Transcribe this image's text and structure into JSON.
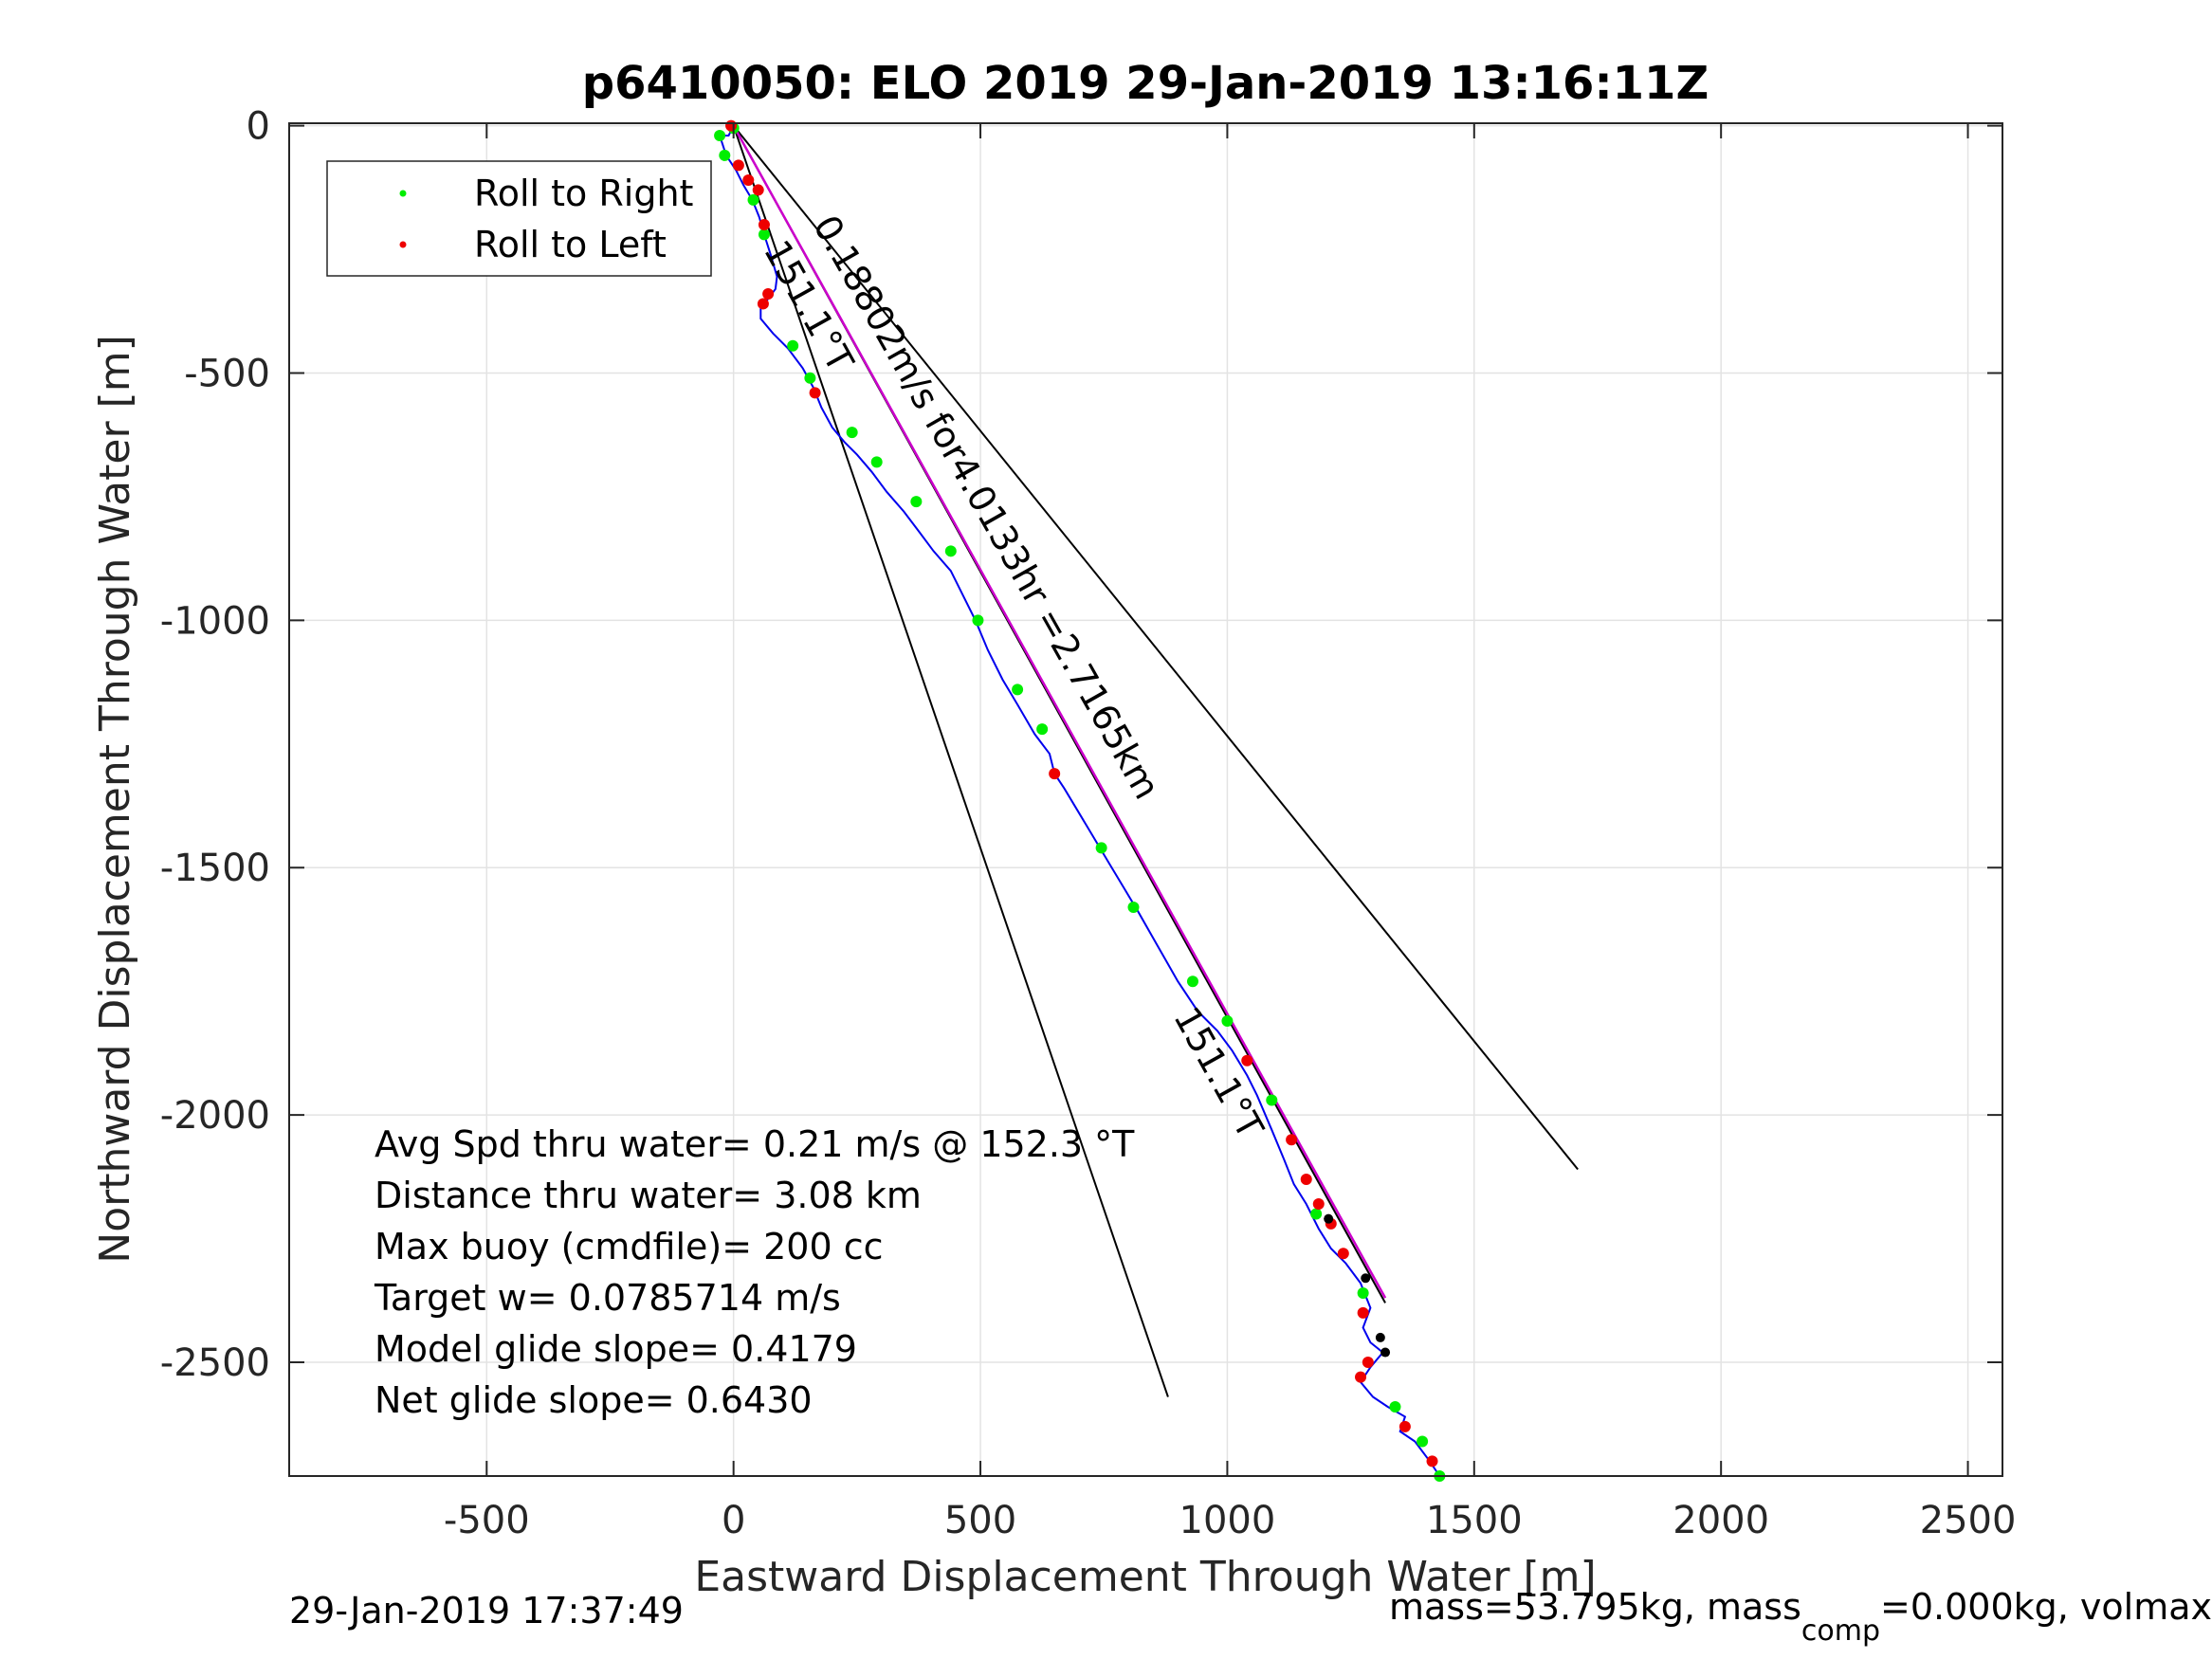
{
  "chart_data": {
    "type": "scatter",
    "title": "p6410050: ELO 2019 29-Jan-2019 13:16:11Z",
    "xlabel": "Eastward Displacement Through Water [m]",
    "ylabel": "Northward Displacement Through Water [m]",
    "xlim": [
      -900,
      2570
    ],
    "ylim": [
      -2730,
      5
    ],
    "xticks": [
      -500,
      0,
      500,
      1000,
      1500,
      2000,
      2500
    ],
    "yticks": [
      0,
      -500,
      -1000,
      -1500,
      -2000,
      -2500
    ],
    "grid": true,
    "legend_position": "top-left",
    "legend": [
      {
        "label": "Roll to Right",
        "color": "#00ee00"
      },
      {
        "label": "Roll to Left",
        "color": "#ee0000"
      }
    ],
    "track": {
      "name": "glider track",
      "color": "#0000ee",
      "x": [
        0,
        -10,
        -28,
        -15,
        5,
        20,
        38,
        52,
        62,
        75,
        88,
        85,
        55,
        55,
        80,
        110,
        140,
        162,
        178,
        200,
        225,
        250,
        280,
        310,
        345,
        375,
        405,
        440,
        465,
        490,
        515,
        545,
        575,
        610,
        640,
        650,
        670,
        700,
        730,
        760,
        790,
        820,
        860,
        900,
        940,
        980,
        1010,
        1040,
        1060,
        1090,
        1115,
        1135,
        1160,
        1185,
        1210,
        1240,
        1270,
        1290,
        1275,
        1290,
        1315,
        1290,
        1270,
        1295,
        1325,
        1360,
        1350,
        1380,
        1410,
        1430
      ],
      "y": [
        0,
        -20,
        -20,
        -60,
        -90,
        -120,
        -150,
        -185,
        -220,
        -260,
        -305,
        -330,
        -370,
        -390,
        -420,
        -450,
        -490,
        -530,
        -570,
        -610,
        -640,
        -665,
        -700,
        -740,
        -780,
        -820,
        -860,
        -900,
        -950,
        -1000,
        -1060,
        -1120,
        -1170,
        -1230,
        -1270,
        -1310,
        -1340,
        -1390,
        -1440,
        -1490,
        -1540,
        -1590,
        -1660,
        -1730,
        -1790,
        -1830,
        -1870,
        -1920,
        -1960,
        -2030,
        -2090,
        -2140,
        -2180,
        -2230,
        -2270,
        -2300,
        -2340,
        -2390,
        -2430,
        -2460,
        -2480,
        -2510,
        -2540,
        -2570,
        -2590,
        -2610,
        -2640,
        -2660,
        -2700,
        -2730
      ]
    },
    "roll_right": {
      "name": "Roll to Right",
      "x": [
        -28,
        -18,
        0,
        40,
        62,
        120,
        155,
        240,
        290,
        370,
        440,
        495,
        575,
        625,
        745,
        810,
        930,
        1000,
        1090,
        1180,
        1275,
        1340,
        1395,
        1430
      ],
      "y": [
        -20,
        -60,
        -5,
        -150,
        -220,
        -445,
        -510,
        -620,
        -680,
        -760,
        -860,
        -1000,
        -1140,
        -1220,
        -1460,
        -1580,
        -1730,
        -1810,
        -1970,
        -2200,
        -2360,
        -2590,
        -2660,
        -2730
      ]
    },
    "roll_left": {
      "name": "Roll to Left",
      "x": [
        -5,
        10,
        30,
        50,
        62,
        60,
        70,
        165,
        650,
        1040,
        1130,
        1160,
        1185,
        1210,
        1235,
        1275,
        1270,
        1285,
        1360,
        1415
      ],
      "y": [
        0,
        -80,
        -110,
        -130,
        -200,
        -360,
        -340,
        -540,
        -1310,
        -1890,
        -2050,
        -2130,
        -2180,
        -2220,
        -2280,
        -2400,
        -2530,
        -2500,
        -2630,
        -2700
      ]
    },
    "black_points": {
      "x": [
        1205,
        1280,
        1310,
        1320
      ],
      "y": [
        -2210,
        -2330,
        -2450,
        -2480
      ]
    },
    "lines": [
      {
        "name": "cone-left",
        "color": "#000000",
        "x": [
          0,
          880
        ],
        "y": [
          0,
          -2570
        ]
      },
      {
        "name": "cone-right",
        "color": "#000000",
        "x": [
          0,
          1710
        ],
        "y": [
          0,
          -2110
        ]
      },
      {
        "name": "mean-heading",
        "color": "#000000",
        "x": [
          0,
          1320
        ],
        "y": [
          0,
          -2380
        ]
      },
      {
        "name": "speed-vector",
        "color": "#cc00cc",
        "x": [
          0,
          1320
        ],
        "y": [
          0,
          -2370
        ]
      }
    ],
    "annotations": [
      {
        "text": "0.18802m/s for4.0133hr =2.7165km",
        "x": 160,
        "y": -200,
        "angle": 60.5
      },
      {
        "text": "151.1°T",
        "x": 60,
        "y": -250,
        "angle": 61
      },
      {
        "text": "151.1°T",
        "x": 890,
        "y": -1800,
        "angle": 61
      }
    ],
    "stats": [
      "Avg Spd thru water=  0.21 m/s @ 152.3 °T",
      "Distance thru water=  3.08 km",
      "Max buoy (cmdfile)= 200 cc",
      "Target w= 0.0785714 m/s",
      "Model glide slope= 0.4179",
      "Net glide slope= 0.6430"
    ]
  },
  "footer": {
    "timestamp": "29-Jan-2019 17:37:49",
    "mass_prefix": "mass=53.795kg, mass",
    "mass_subscript": "comp",
    "mass_suffix": "=0.000kg, volmax"
  }
}
